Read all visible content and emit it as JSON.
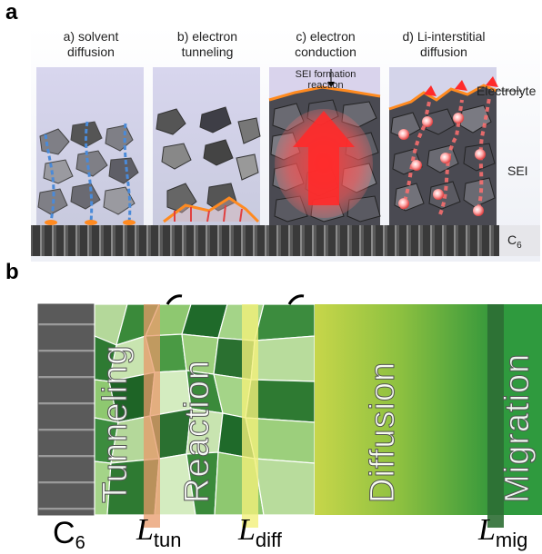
{
  "panel_a": {
    "letter": "a",
    "captions": [
      {
        "prefix": "a) solvent",
        "line2": "diffusion"
      },
      {
        "prefix": "b) electron",
        "line2": "tunneling"
      },
      {
        "prefix": "c) electron",
        "line2": "conduction"
      },
      {
        "prefix": "d) Li-interstitial",
        "line2": "diffusion"
      }
    ],
    "sei_formation_label_1": "SEI formation",
    "sei_formation_label_2": "reaction",
    "layer_labels": {
      "electrolyte": "Electrolyte",
      "sei": "SEI",
      "c6_base": "C",
      "c6_sub": "6"
    }
  },
  "panel_b": {
    "letter": "b",
    "regions": [
      "Tunneling",
      "Reaction",
      "Diffusion",
      "Migration"
    ],
    "bottom_labels": {
      "c6_base": "C",
      "c6_sub": "6",
      "ltun_main": "L",
      "ltun_sub": "tun",
      "ldiff_main": "L",
      "ldiff_sub": "diff",
      "lmig_main": "L",
      "lmig_sub": "mig"
    },
    "colors": {
      "orange_band": "#e89a6a",
      "yellow_band": "#f2f07a",
      "dark_green": "#2e8b3a",
      "lime": "#a8c83a"
    }
  }
}
